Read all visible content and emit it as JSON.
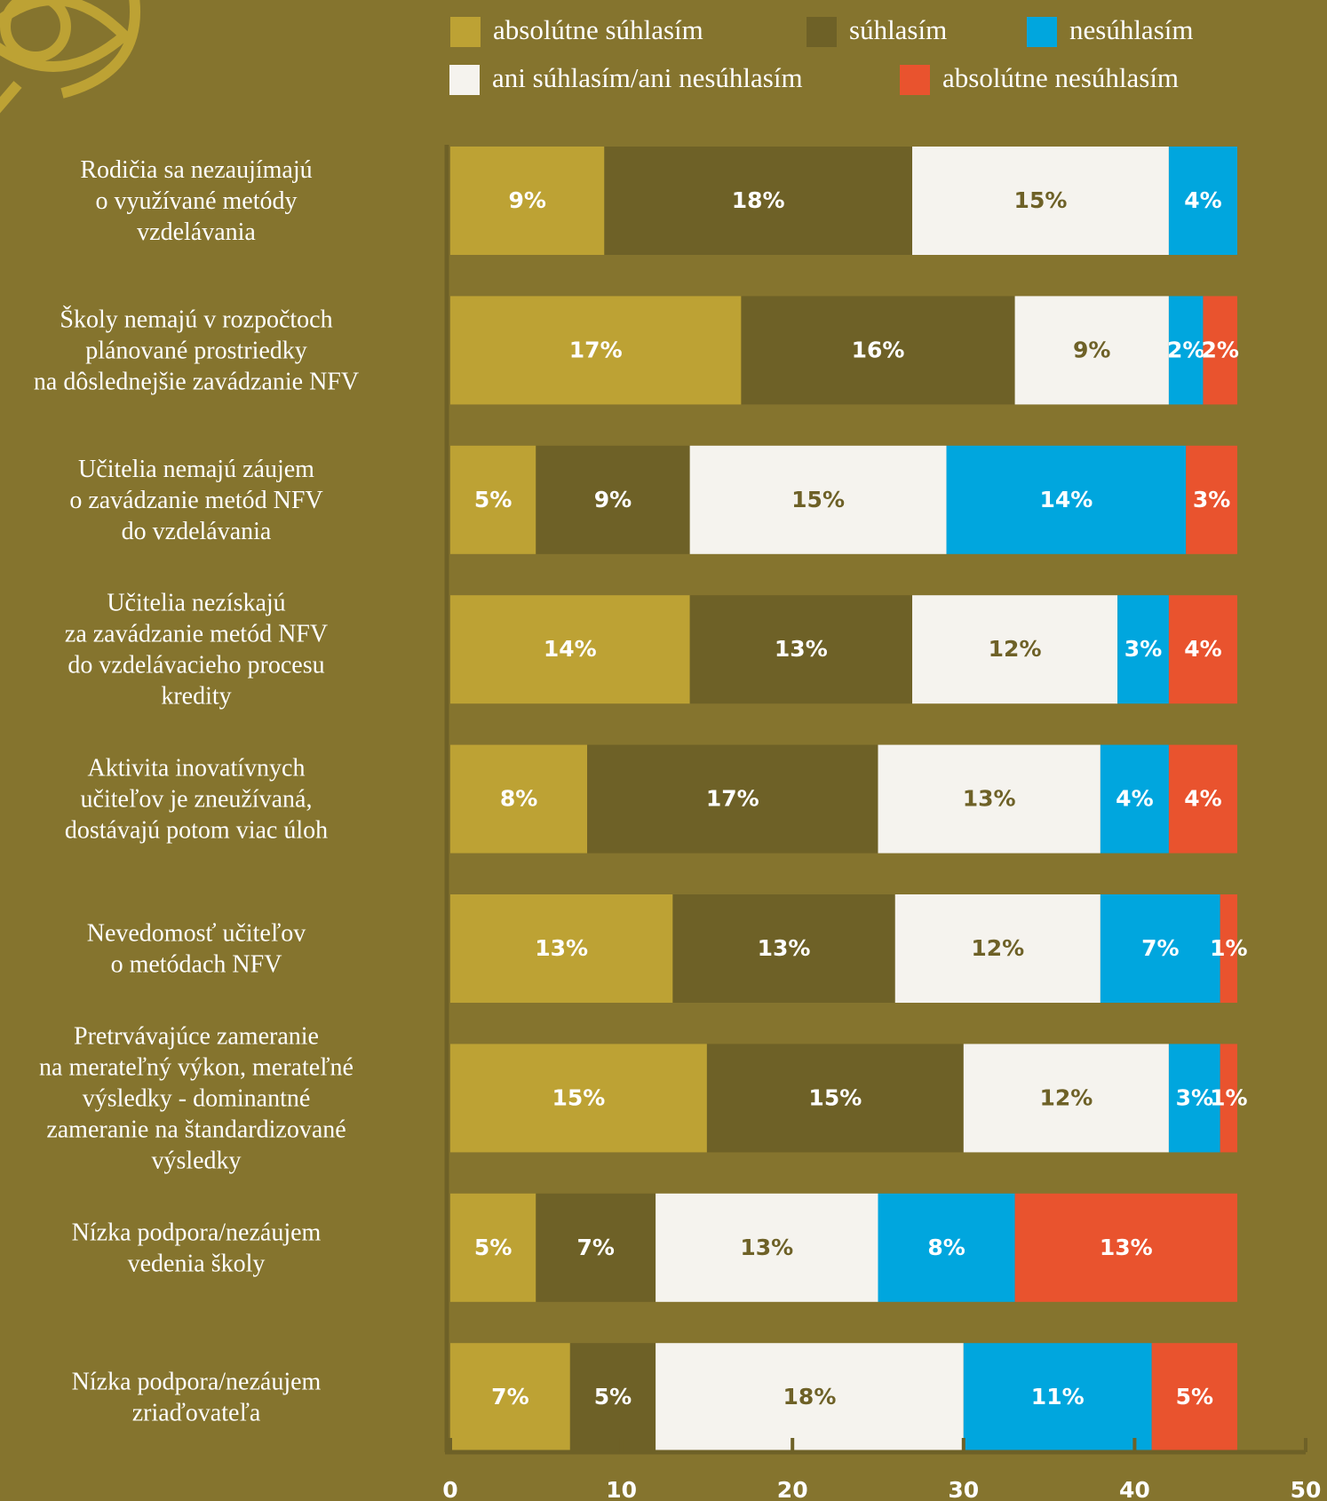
{
  "chart_data": {
    "type": "stacked-barh",
    "categories": [
      [
        "Rodičia sa nezaujímajú",
        "o využívané metódy",
        "vzdelávania"
      ],
      [
        "Školy nemajú v rozpočtoch",
        "plánované prostriedky",
        "na dôslednejšie zavádzanie NFV"
      ],
      [
        "Učitelia nemajú záujem",
        "o zavádzanie metód NFV",
        "do vzdelávania"
      ],
      [
        "Učitelia nezískajú",
        "za zavádzanie metód NFV",
        "do vzdelávacieho procesu",
        "kredity"
      ],
      [
        "Aktivita inovatívnych",
        "učiteľov je zneužívaná,",
        "dostávajú potom viac úloh"
      ],
      [
        "Nevedomosť učiteľov",
        "o metódach NFV"
      ],
      [
        "Pretrvávajúce zameranie",
        "na merateľný výkon, merateľné",
        "výsledky -  dominantné",
        "zameranie na štandardizované",
        "výsledky"
      ],
      [
        "Nízka podpora/nezáujem",
        "vedenia školy"
      ],
      [
        "Nízka podpora/nezáujem",
        "zriaďovateľa"
      ]
    ],
    "series": [
      {
        "name": "absolútne súhlasím",
        "color": "#bda234",
        "values": [
          9,
          17,
          5,
          14,
          8,
          13,
          15,
          5,
          7
        ],
        "value_labels": [
          "9%",
          "17%",
          "5%",
          "14%",
          "8%",
          "13%",
          "15%",
          "5%",
          "7%"
        ]
      },
      {
        "name": "súhlasím",
        "color": "#6e6127",
        "values": [
          18,
          16,
          9,
          13,
          17,
          13,
          15,
          7,
          5
        ],
        "value_labels": [
          "18%",
          "16%",
          "9%",
          "13%",
          "17%",
          "13%",
          "15%",
          "7%",
          "5%"
        ]
      },
      {
        "name": "ani súhlasím/ani nesúhlasím",
        "color": "#f5f3ee",
        "values": [
          15,
          9,
          15,
          12,
          13,
          12,
          12,
          13,
          18
        ],
        "value_labels": [
          "15%",
          "9%",
          "15%",
          "12%",
          "13%",
          "12%",
          "12%",
          "13%",
          "18%"
        ]
      },
      {
        "name": "nesúhlasím",
        "color": "#00a6de",
        "values": [
          4,
          2,
          14,
          3,
          4,
          7,
          3,
          8,
          11
        ],
        "value_labels": [
          "4%",
          "2%",
          "14%",
          "3%",
          "4%",
          "7%",
          "3%",
          "8%",
          "11%"
        ]
      },
      {
        "name": "absolútne nesúhlasím",
        "color": "#e9532e",
        "values": [
          null,
          2,
          3,
          4,
          4,
          1,
          1,
          13,
          5
        ],
        "value_labels": [
          null,
          "2%",
          "3%",
          "4%",
          "4%",
          "1%",
          "1%",
          "13%",
          "5%"
        ]
      }
    ],
    "xlim": [
      0,
      50
    ],
    "xticks": [
      0,
      10,
      20,
      30,
      40,
      50
    ]
  }
}
